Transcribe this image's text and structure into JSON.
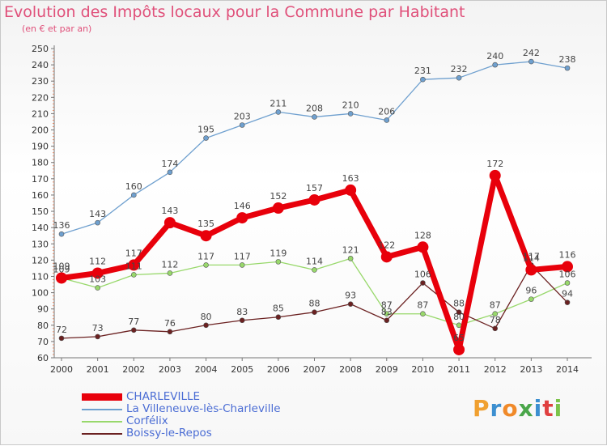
{
  "title": "Evolution des Impôts locaux pour la Commune par Habitant",
  "subtitle": "(en € et par an)",
  "logo": "Proxiti",
  "chart_data": {
    "type": "line",
    "title": "Evolution des Impôts locaux pour la Commune par Habitant",
    "subtitle": "(en € et par an)",
    "xlabel": "",
    "ylabel": "",
    "x": [
      2000,
      2001,
      2002,
      2003,
      2004,
      2005,
      2006,
      2007,
      2008,
      2009,
      2010,
      2011,
      2012,
      2013,
      2014
    ],
    "ylim": [
      60,
      250
    ],
    "yticks": [
      60,
      70,
      80,
      90,
      100,
      110,
      120,
      130,
      140,
      150,
      160,
      170,
      180,
      190,
      200,
      210,
      220,
      230,
      240,
      250
    ],
    "grid": false,
    "legend_position": "bottom-left",
    "series": [
      {
        "name": "CHARLEVILLE",
        "color": "#e8000b",
        "values": [
          109,
          112,
          117,
          143,
          135,
          146,
          152,
          157,
          163,
          122,
          128,
          65,
          172,
          114,
          116
        ],
        "labels": [
          "109",
          "112",
          "117",
          "143",
          "135",
          "146",
          "152",
          "157",
          "163",
          "122",
          "128",
          "65",
          "172",
          "114",
          "116"
        ]
      },
      {
        "name": "La Villeneuve-lès-Charleville",
        "color": "#6fa0cf",
        "values": [
          136,
          143,
          160,
          174,
          195,
          203,
          211,
          208,
          210,
          206,
          231,
          232,
          240,
          242,
          238
        ],
        "labels": [
          "136",
          "143",
          "160",
          "174",
          "195",
          "203",
          "211",
          "208",
          "210",
          "206",
          "231",
          "232",
          "240",
          "242",
          "238"
        ]
      },
      {
        "name": "Corfélix",
        "color": "#98d86b",
        "values": [
          109,
          103,
          111,
          112,
          117,
          117,
          119,
          114,
          121,
          87,
          87,
          80,
          87,
          96,
          106
        ],
        "labels": [
          "109",
          "103",
          "111",
          "112",
          "117",
          "117",
          "119",
          "114",
          "121",
          "87",
          "87",
          "80",
          "87",
          "96",
          "106"
        ]
      },
      {
        "name": "Boissy-le-Repos",
        "color": "#6b2121",
        "values": [
          72,
          73,
          77,
          76,
          80,
          83,
          85,
          88,
          93,
          83,
          106,
          88,
          78,
          117,
          94
        ],
        "labels": [
          "72",
          "73",
          "77",
          "76",
          "80",
          "83",
          "85",
          "88",
          "93",
          "83",
          "106",
          "88",
          "78",
          "117",
          "94"
        ]
      }
    ]
  }
}
